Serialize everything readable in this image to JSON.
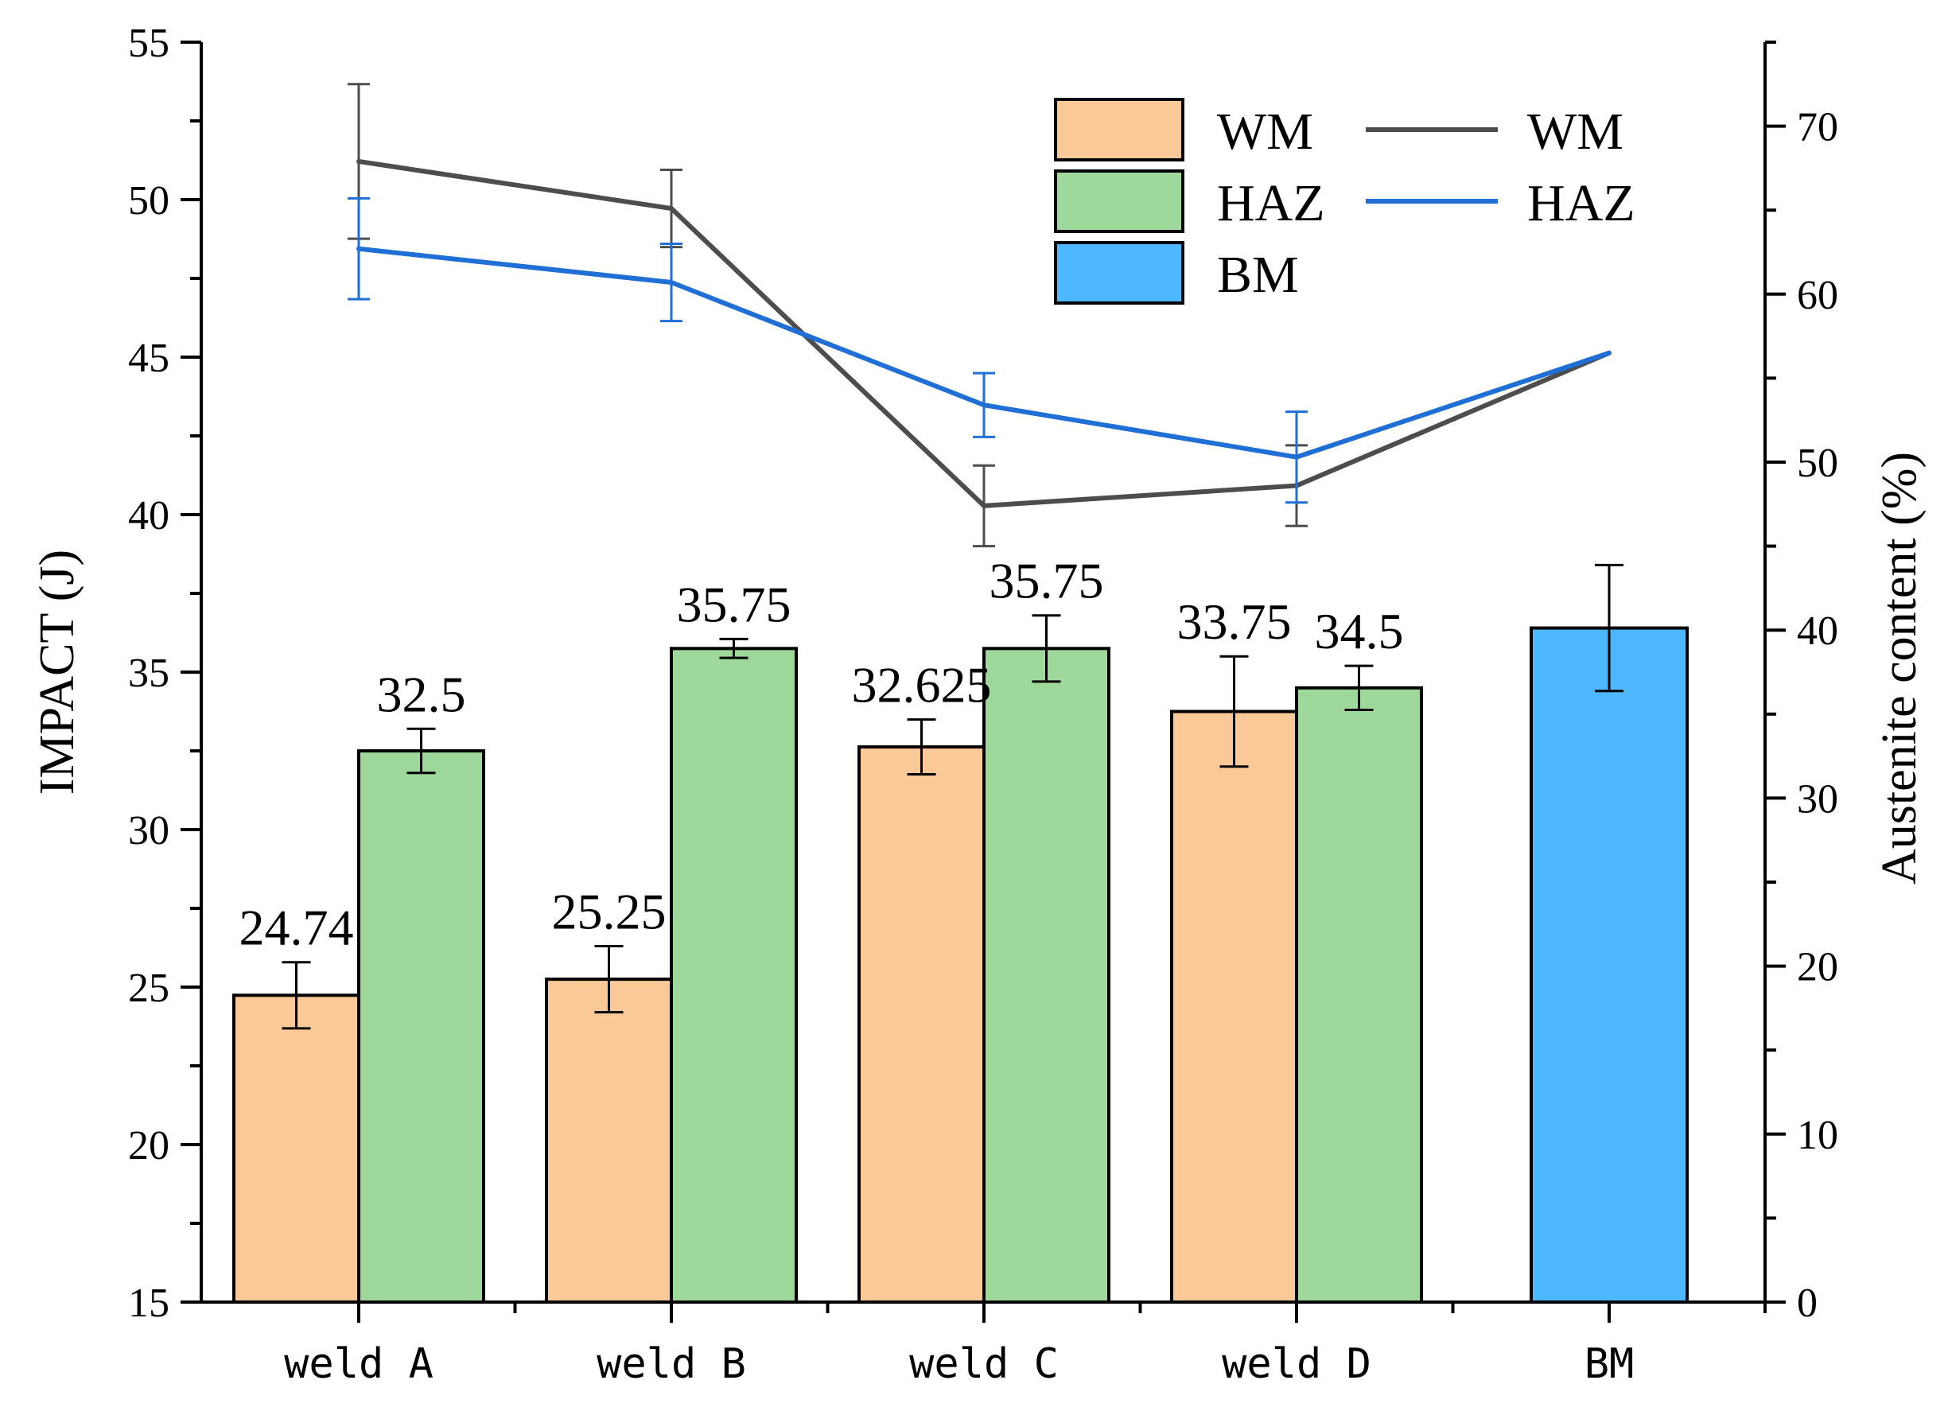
{
  "chart_data": {
    "type": "bar+line",
    "categories": [
      "weld A",
      "weld B",
      "weld C",
      "weld D",
      "BM"
    ],
    "ylabel_left": "IMPACT (J)",
    "ylabel_right": "Austenite content (%)",
    "ylim_left": [
      15,
      55
    ],
    "ylim_right": [
      0,
      75
    ],
    "yticks_left": [
      15,
      20,
      25,
      30,
      35,
      40,
      45,
      50,
      55
    ],
    "yticks_right": [
      0,
      10,
      20,
      30,
      40,
      50,
      60,
      70
    ],
    "bar_series": [
      {
        "name": "WM",
        "color": "#FBC898",
        "values": [
          24.74,
          25.25,
          32.625,
          33.75,
          null
        ],
        "errors": [
          1.05,
          1.05,
          0.87,
          1.75,
          null
        ],
        "labels": [
          "24.74",
          "25.25",
          "32.625",
          "33.75",
          ""
        ]
      },
      {
        "name": "HAZ",
        "color": "#9ED89A",
        "values": [
          32.5,
          35.75,
          35.75,
          34.5,
          null
        ],
        "errors": [
          0.7,
          0.3,
          1.05,
          0.7,
          null
        ],
        "labels": [
          "32.5",
          "35.75",
          "35.75",
          "34.5",
          ""
        ]
      },
      {
        "name": "BM",
        "color": "#4DB8FF",
        "values": [
          null,
          null,
          null,
          null,
          36.4
        ],
        "errors": [
          null,
          null,
          null,
          null,
          2.0
        ],
        "labels": [
          "",
          "",
          "",
          "",
          ""
        ]
      }
    ],
    "line_series": [
      {
        "name": "WM",
        "color": "#4D4D4D",
        "values": [
          67.9,
          65.1,
          47.4,
          48.6,
          56.5
        ],
        "errors": [
          4.6,
          2.3,
          2.4,
          2.4,
          null
        ]
      },
      {
        "name": "HAZ",
        "color": "#1F6FD6",
        "values": [
          62.7,
          60.7,
          53.4,
          50.3,
          56.5
        ],
        "errors": [
          3.0,
          2.3,
          1.9,
          2.7,
          null
        ]
      }
    ],
    "legend": {
      "bars": [
        "WM",
        "HAZ",
        "BM"
      ],
      "lines": [
        "WM",
        "HAZ"
      ],
      "position": "top-right"
    }
  }
}
